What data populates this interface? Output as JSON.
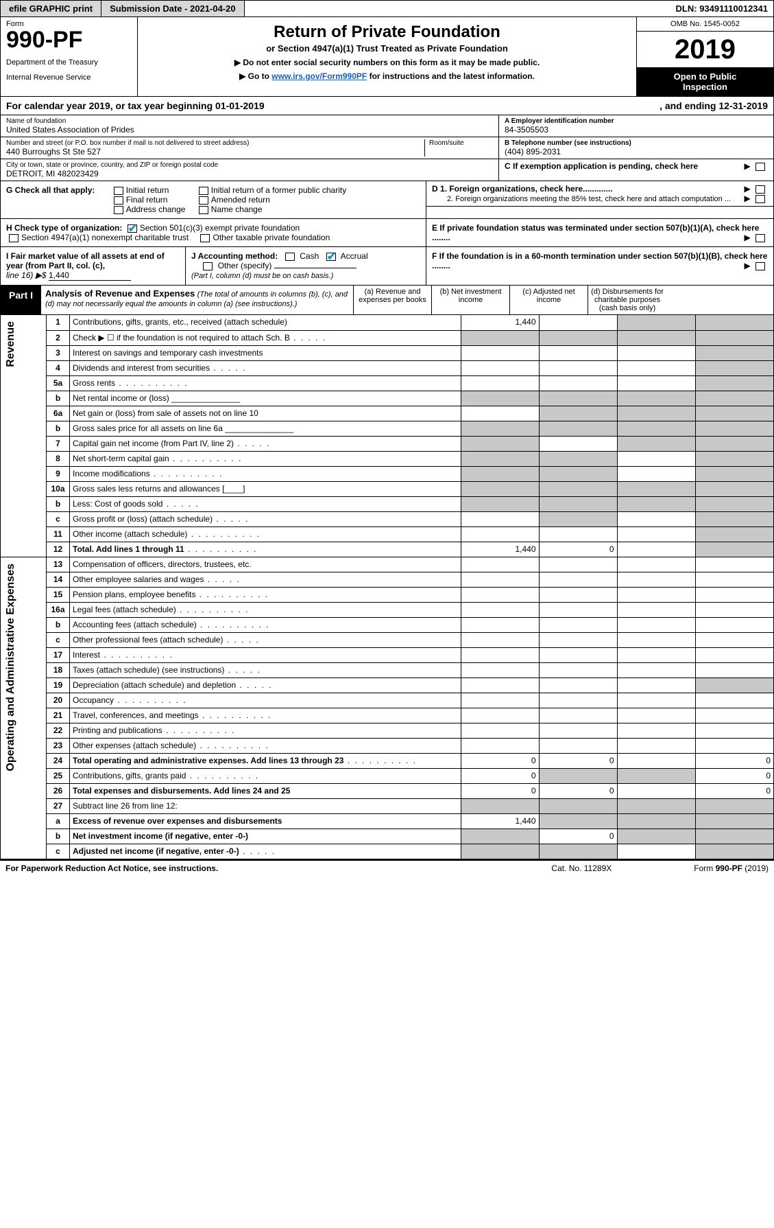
{
  "topbar": {
    "efile": "efile GRAPHIC print",
    "submission": "Submission Date - 2021-04-20",
    "dln": "DLN: 93491110012341"
  },
  "header": {
    "form_word": "Form",
    "form_num": "990-PF",
    "dept1": "Department of the Treasury",
    "dept2": "Internal Revenue Service",
    "title": "Return of Private Foundation",
    "subtitle": "or Section 4947(a)(1) Trust Treated as Private Foundation",
    "inst1": "▶ Do not enter social security numbers on this form as it may be made public.",
    "inst2a": "▶ Go to ",
    "inst2link": "www.irs.gov/Form990PF",
    "inst2b": " for instructions and the latest information.",
    "omb": "OMB No. 1545-0052",
    "year": "2019",
    "open1": "Open to Public",
    "open2": "Inspection"
  },
  "calYear": {
    "begin": "For calendar year 2019, or tax year beginning 01-01-2019",
    "end": ", and ending 12-31-2019"
  },
  "info": {
    "name_lbl": "Name of foundation",
    "name_val": "United States Association of Prides",
    "addr_lbl": "Number and street (or P.O. box number if mail is not delivered to street address)",
    "addr_val": "440 Burroughs St Ste 527",
    "room_lbl": "Room/suite",
    "city_lbl": "City or town, state or province, country, and ZIP or foreign postal code",
    "city_val": "DETROIT, MI  482023429",
    "A_lbl": "A Employer identification number",
    "A_val": "84-3505503",
    "B_lbl": "B Telephone number (see instructions)",
    "B_val": "(404) 895-2031",
    "C_lbl": "C If exemption application is pending, check here"
  },
  "boxG": {
    "label": "G Check all that apply:",
    "opt1": "Initial return",
    "opt2": "Final return",
    "opt3": "Address change",
    "opt4": "Initial return of a former public charity",
    "opt5": "Amended return",
    "opt6": "Name change"
  },
  "boxH": {
    "label": "H Check type of organization:",
    "opt1": "Section 501(c)(3) exempt private foundation",
    "opt2": "Section 4947(a)(1) nonexempt charitable trust",
    "opt3": "Other taxable private foundation"
  },
  "boxI": {
    "label": "I Fair market value of all assets at end of year (from Part II, col. (c),",
    "line": "line 16) ▶$",
    "val": "1,440"
  },
  "boxJ": {
    "label": "J Accounting method:",
    "cash": "Cash",
    "accrual": "Accrual",
    "other": "Other (specify)",
    "note": "(Part I, column (d) must be on cash basis.)"
  },
  "boxD": {
    "d1": "D 1. Foreign organizations, check here.............",
    "d2": "2. Foreign organizations meeting the 85% test, check here and attach computation ..."
  },
  "boxE": "E  If private foundation status was terminated under section 507(b)(1)(A), check here ........",
  "boxF": "F  If the foundation is in a 60-month termination under section 507(b)(1)(B), check here ........",
  "part1": {
    "part": "Part I",
    "title": "Analysis of Revenue and Expenses",
    "paren": " (The total of amounts in columns (b), (c), and (d) may not necessarily equal the amounts in column (a) (see instructions).)",
    "colA": "(a)   Revenue and expenses per books",
    "colB": "(b)   Net investment income",
    "colC": "(c)   Adjusted net income",
    "colD": "(d)   Disbursements for charitable purposes (cash basis only)"
  },
  "section_labels": {
    "revenue": "Revenue",
    "expenses": "Operating and Administrative Expenses"
  },
  "rows": [
    {
      "n": "1",
      "d": "Contributions, gifts, grants, etc., received (attach schedule)",
      "a": "1,440",
      "shadeB": false,
      "shadeC": true,
      "shadeD": true
    },
    {
      "n": "2",
      "d": "Check ▶ ☐ if the foundation is not required to attach Sch. B",
      "dotsm": true,
      "shadeA": true,
      "shadeB": true,
      "shadeC": true,
      "shadeD": true
    },
    {
      "n": "3",
      "d": "Interest on savings and temporary cash investments",
      "shadeD": true
    },
    {
      "n": "4",
      "d": "Dividends and interest from securities",
      "dotsm": true,
      "shadeD": true
    },
    {
      "n": "5a",
      "d": "Gross rents",
      "dot": true,
      "shadeD": true
    },
    {
      "n": "b",
      "d": "Net rental income or (loss) _______________",
      "shadeA": true,
      "shadeB": true,
      "shadeC": true,
      "shadeD": true
    },
    {
      "n": "6a",
      "d": "Net gain or (loss) from sale of assets not on line 10",
      "shadeB": true,
      "shadeC": true,
      "shadeD": true
    },
    {
      "n": "b",
      "d": "Gross sales price for all assets on line 6a _______________",
      "shadeA": true,
      "shadeB": true,
      "shadeC": true,
      "shadeD": true
    },
    {
      "n": "7",
      "d": "Capital gain net income (from Part IV, line 2)",
      "dotsm": true,
      "shadeA": true,
      "shadeC": true,
      "shadeD": true
    },
    {
      "n": "8",
      "d": "Net short-term capital gain",
      "dot": true,
      "shadeA": true,
      "shadeB": true,
      "shadeD": true
    },
    {
      "n": "9",
      "d": "Income modifications",
      "dot": true,
      "shadeA": true,
      "shadeB": true,
      "shadeD": true
    },
    {
      "n": "10a",
      "d": "Gross sales less returns and allowances   [____]",
      "shadeA": true,
      "shadeB": true,
      "shadeC": true,
      "shadeD": true
    },
    {
      "n": "b",
      "d": "Less: Cost of goods sold",
      "dotsm": true,
      "boxafter": true,
      "shadeA": true,
      "shadeB": true,
      "shadeC": true,
      "shadeD": true
    },
    {
      "n": "c",
      "d": "Gross profit or (loss) (attach schedule)",
      "dotsm": true,
      "shadeB": true,
      "shadeD": true
    },
    {
      "n": "11",
      "d": "Other income (attach schedule)",
      "dot": true,
      "shadeD": true
    },
    {
      "n": "12",
      "d": "Total. Add lines 1 through 11",
      "bold": true,
      "dot": true,
      "a": "1,440",
      "b": "0",
      "shadeD": true
    },
    {
      "n": "13",
      "d": "Compensation of officers, directors, trustees, etc."
    },
    {
      "n": "14",
      "d": "Other employee salaries and wages",
      "dotsm": true
    },
    {
      "n": "15",
      "d": "Pension plans, employee benefits",
      "dot": true
    },
    {
      "n": "16a",
      "d": "Legal fees (attach schedule)",
      "dot": true
    },
    {
      "n": "b",
      "d": "Accounting fees (attach schedule)",
      "dot": true
    },
    {
      "n": "c",
      "d": "Other professional fees (attach schedule)",
      "dotsm": true
    },
    {
      "n": "17",
      "d": "Interest",
      "dot": true
    },
    {
      "n": "18",
      "d": "Taxes (attach schedule) (see instructions)",
      "dotsm": true
    },
    {
      "n": "19",
      "d": "Depreciation (attach schedule) and depletion",
      "dotsm": true,
      "shadeD": true
    },
    {
      "n": "20",
      "d": "Occupancy",
      "dot": true
    },
    {
      "n": "21",
      "d": "Travel, conferences, and meetings",
      "dot": true
    },
    {
      "n": "22",
      "d": "Printing and publications",
      "dot": true
    },
    {
      "n": "23",
      "d": "Other expenses (attach schedule)",
      "dot": true
    },
    {
      "n": "24",
      "d": "Total operating and administrative expenses. Add lines 13 through 23",
      "bold": true,
      "dot": true,
      "a": "0",
      "b": "0",
      "dcol": "0"
    },
    {
      "n": "25",
      "d": "Contributions, gifts, grants paid",
      "dot": true,
      "a": "0",
      "shadeB": true,
      "shadeC": true,
      "dcol": "0"
    },
    {
      "n": "26",
      "d": "Total expenses and disbursements. Add lines 24 and 25",
      "bold": true,
      "a": "0",
      "b": "0",
      "dcol": "0"
    },
    {
      "n": "27",
      "d": "Subtract line 26 from line 12:",
      "shadeA": true,
      "shadeB": true,
      "shadeC": true,
      "shadeD": true
    },
    {
      "n": "a",
      "d": "Excess of revenue over expenses and disbursements",
      "bold": true,
      "a": "1,440",
      "shadeB": true,
      "shadeC": true,
      "shadeD": true
    },
    {
      "n": "b",
      "d": "Net investment income (if negative, enter -0-)",
      "bold": true,
      "shadeA": true,
      "b": "0",
      "shadeC": true,
      "shadeD": true
    },
    {
      "n": "c",
      "d": "Adjusted net income (if negative, enter -0-)",
      "bold": true,
      "dotsm": true,
      "shadeA": true,
      "shadeB": true,
      "shadeD": true
    }
  ],
  "footer": {
    "left": "For Paperwork Reduction Act Notice, see instructions.",
    "mid": "Cat. No. 11289X",
    "right": "Form 990-PF (2019)"
  },
  "colors": {
    "shade": "#c8c8c8",
    "linkblue": "#1a5dab",
    "checkblue": "#2a8fbd",
    "greybtn": "#d8d8d8"
  }
}
